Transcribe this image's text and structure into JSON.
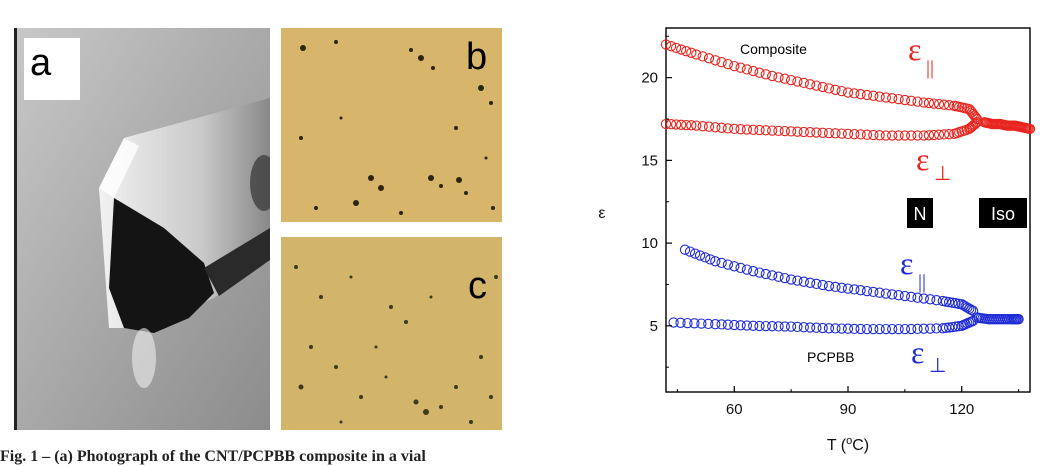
{
  "figure": {
    "panel_labels": {
      "a": "a",
      "b": "b",
      "c": "c"
    },
    "caption": "Fig. 1 – (a) Photograph of the CNT/PCPBB composite in a vial"
  },
  "colors": {
    "composite": "#e8251f",
    "pcpbb": "#1f2bd6",
    "micrograph_bg": "#d9b56a",
    "photo_bg": "#b9b9b9"
  },
  "chart_data": {
    "type": "scatter",
    "xlabel": "T (°C)",
    "xlabel_parts": {
      "prefix": "T (",
      "sup": "o",
      "suffix": "C)"
    },
    "ylabel": "ε",
    "xlim": [
      42,
      138
    ],
    "ylim": [
      1,
      23
    ],
    "x_ticks": [
      60,
      90,
      120
    ],
    "y_ticks": [
      5,
      10,
      15,
      20
    ],
    "annotations": {
      "composite": "Composite",
      "pcpbb": "PCPBB",
      "eps_symbol": "ε",
      "parallel": "||",
      "perp": "⊥",
      "nematic": "N",
      "isotropic": "Iso"
    },
    "series": [
      {
        "name": "Composite ε∥",
        "color": "#e8251f",
        "x": [
          42,
          50,
          60,
          70,
          80,
          90,
          100,
          110,
          118,
          122,
          124
        ],
        "y": [
          22.0,
          21.4,
          20.7,
          20.1,
          19.6,
          19.1,
          18.8,
          18.5,
          18.3,
          18.1,
          17.5
        ]
      },
      {
        "name": "Composite ε⊥",
        "color": "#e8251f",
        "x": [
          42,
          50,
          60,
          70,
          80,
          90,
          100,
          110,
          118,
          122,
          124
        ],
        "y": [
          17.2,
          17.1,
          16.9,
          16.8,
          16.7,
          16.6,
          16.5,
          16.5,
          16.6,
          16.9,
          17.3
        ]
      },
      {
        "name": "Composite iso",
        "color": "#e8251f",
        "x": [
          126,
          128,
          130,
          132,
          134,
          136,
          138
        ],
        "y": [
          17.3,
          17.2,
          17.2,
          17.1,
          17.1,
          17.0,
          16.9
        ]
      },
      {
        "name": "PCPBB ε∥",
        "color": "#1f2bd6",
        "x": [
          47,
          55,
          65,
          75,
          85,
          95,
          105,
          115,
          120,
          123
        ],
        "y": [
          9.6,
          8.9,
          8.3,
          7.8,
          7.4,
          7.1,
          6.8,
          6.5,
          6.3,
          5.9
        ]
      },
      {
        "name": "PCPBB ε⊥",
        "color": "#1f2bd6",
        "x": [
          44,
          55,
          65,
          75,
          85,
          95,
          105,
          115,
          120,
          123
        ],
        "y": [
          5.2,
          5.1,
          5.0,
          4.95,
          4.85,
          4.8,
          4.8,
          4.85,
          5.0,
          5.3
        ]
      },
      {
        "name": "PCPBB iso",
        "color": "#1f2bd6",
        "x": [
          124,
          127,
          130,
          133,
          135
        ],
        "y": [
          5.5,
          5.4,
          5.4,
          5.4,
          5.4
        ]
      }
    ]
  }
}
